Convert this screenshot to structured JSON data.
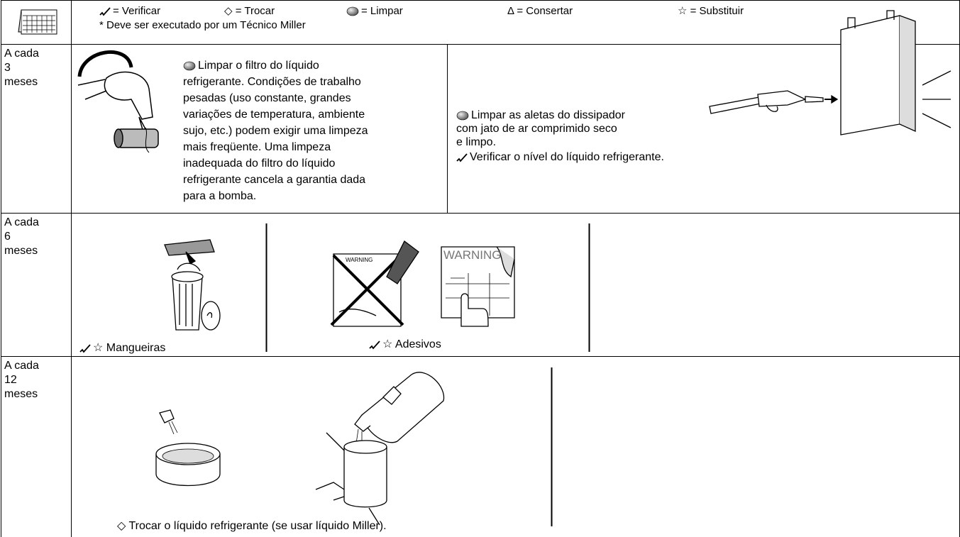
{
  "header": {
    "legend": [
      "= Verificar",
      "◇ = Trocar",
      "= Limpar",
      "Δ = Consertar",
      "☆ = Substituir"
    ],
    "note": "* Deve ser executado por um Técnico Miller"
  },
  "rows": [
    {
      "label": [
        "A cada",
        "3",
        "meses"
      ],
      "cells": [
        {
          "lines": [
            "Limpar o filtro do líquido",
            "refrigerante. Condições de trabalho",
            "pesadas (uso constante, grandes",
            "variações de temperatura, ambiente",
            "sujo, etc.) podem exigir uma limpeza",
            "mais freqüente. Uma limpeza",
            "inadequada do filtro do líquido",
            "refrigerante cancela a garantia dada",
            "para a bomba."
          ]
        },
        {
          "lines": [
            "Limpar as aletas do dissipador",
            "com jato de ar comprimido seco",
            "e limpo."
          ],
          "check": "Verificar o nível do líquido refrigerante."
        }
      ]
    },
    {
      "label": [
        "A cada",
        "6",
        "meses"
      ],
      "cells": [
        {
          "caption": "☆ Mangueiras"
        },
        {
          "caption": "☆ Adesivos",
          "illustration_text": [
            "WARNING",
            "WARNING"
          ]
        }
      ]
    },
    {
      "label": [
        "A cada",
        "12",
        "meses"
      ],
      "cells": [
        {
          "caption": "◇ Trocar o líquido refrigerante (se usar líquido Miller)."
        }
      ]
    }
  ]
}
